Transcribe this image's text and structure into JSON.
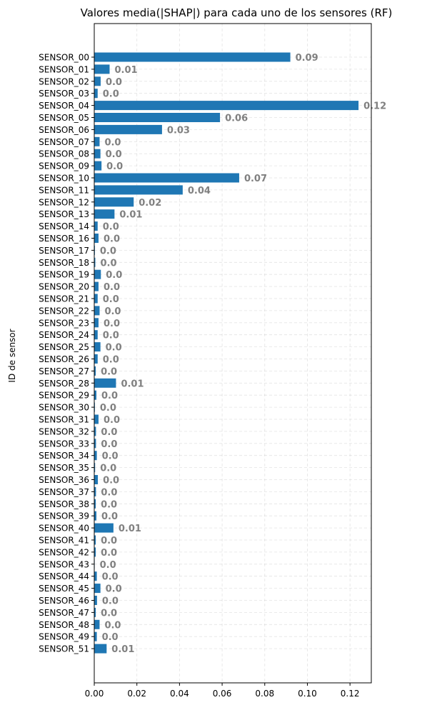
{
  "chart_data": {
    "type": "bar",
    "orientation": "horizontal",
    "title": "Valores media(|SHAP|) para cada uno de los sensores (RF)",
    "xlabel": "",
    "ylabel": "ID de sensor",
    "xlim": [
      0,
      0.13
    ],
    "xticks": [
      "0.00",
      "0.02",
      "0.04",
      "0.06",
      "0.08",
      "0.10",
      "0.12"
    ],
    "xtick_values": [
      0,
      0.02,
      0.04,
      0.06,
      0.08,
      0.1,
      0.12
    ],
    "grid": true,
    "bar_color": "#1f77b4",
    "label_color": "#808080",
    "categories": [
      "SENSOR_00",
      "SENSOR_01",
      "SENSOR_02",
      "SENSOR_03",
      "SENSOR_04",
      "SENSOR_05",
      "SENSOR_06",
      "SENSOR_07",
      "SENSOR_08",
      "SENSOR_09",
      "SENSOR_10",
      "SENSOR_11",
      "SENSOR_12",
      "SENSOR_13",
      "SENSOR_14",
      "SENSOR_16",
      "SENSOR_17",
      "SENSOR_18",
      "SENSOR_19",
      "SENSOR_20",
      "SENSOR_21",
      "SENSOR_22",
      "SENSOR_23",
      "SENSOR_24",
      "SENSOR_25",
      "SENSOR_26",
      "SENSOR_27",
      "SENSOR_28",
      "SENSOR_29",
      "SENSOR_30",
      "SENSOR_31",
      "SENSOR_32",
      "SENSOR_33",
      "SENSOR_34",
      "SENSOR_35",
      "SENSOR_36",
      "SENSOR_37",
      "SENSOR_38",
      "SENSOR_39",
      "SENSOR_40",
      "SENSOR_41",
      "SENSOR_42",
      "SENSOR_43",
      "SENSOR_44",
      "SENSOR_45",
      "SENSOR_46",
      "SENSOR_47",
      "SENSOR_48",
      "SENSOR_49",
      "SENSOR_51"
    ],
    "values": [
      0.092,
      0.0072,
      0.003,
      0.0016,
      0.124,
      0.059,
      0.0318,
      0.0025,
      0.0029,
      0.0034,
      0.068,
      0.0415,
      0.0185,
      0.0095,
      0.0016,
      0.002,
      0.0003,
      0.0005,
      0.0031,
      0.002,
      0.0016,
      0.0025,
      0.002,
      0.0016,
      0.0029,
      0.0016,
      0.0007,
      0.0102,
      0.001,
      0.0003,
      0.002,
      0.0008,
      0.0008,
      0.0012,
      0.0004,
      0.0017,
      0.0008,
      0.0007,
      0.001,
      0.009,
      0.0007,
      0.0007,
      0.0002,
      0.0012,
      0.0029,
      0.0013,
      0.0007,
      0.0025,
      0.0012,
      0.0058
    ],
    "data_labels": [
      "0.09",
      "0.01",
      "0.0",
      "0.0",
      "0.12",
      "0.06",
      "0.03",
      "0.0",
      "0.0",
      "0.0",
      "0.07",
      "0.04",
      "0.02",
      "0.01",
      "0.0",
      "0.0",
      "0.0",
      "0.0",
      "0.0",
      "0.0",
      "0.0",
      "0.0",
      "0.0",
      "0.0",
      "0.0",
      "0.0",
      "0.0",
      "0.01",
      "0.0",
      "0.0",
      "0.0",
      "0.0",
      "0.0",
      "0.0",
      "0.0",
      "0.0",
      "0.0",
      "0.0",
      "0.0",
      "0.01",
      "0.0",
      "0.0",
      "0.0",
      "0.0",
      "0.0",
      "0.0",
      "0.0",
      "0.0",
      "0.0",
      "0.01"
    ]
  }
}
